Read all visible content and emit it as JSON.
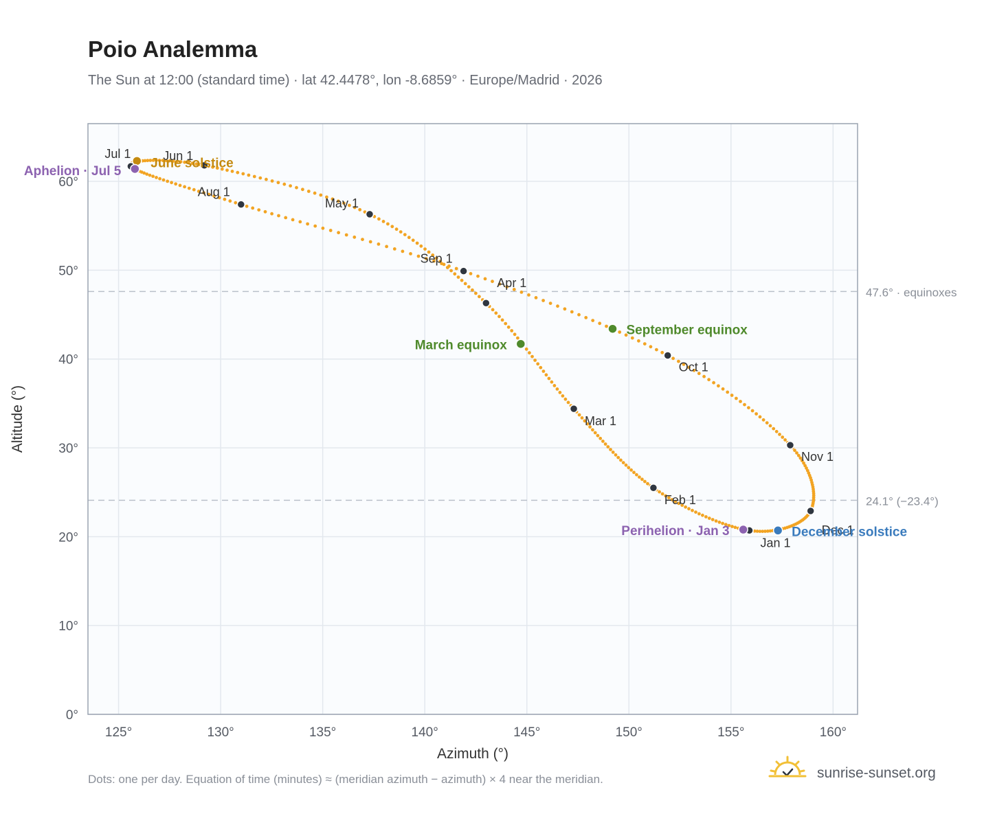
{
  "chart_data": {
    "type": "scatter",
    "title": "Poio Analemma",
    "subtitle": "The Sun at 12:00 (standard time) · lat 42.4478°, lon -8.6859° · Europe/Madrid · 2026",
    "xlabel": "Azimuth (°)",
    "ylabel": "Altitude (°)",
    "xlim": [
      123.5,
      161.2
    ],
    "ylim": [
      0,
      66.5
    ],
    "xticks": [
      125,
      130,
      135,
      140,
      145,
      150,
      155,
      160
    ],
    "yticks": [
      0,
      10,
      20,
      30,
      40,
      50,
      60
    ],
    "tick_suffix": "°",
    "grid": true,
    "series_color": "#f2a423",
    "month_markers": [
      {
        "label": "Jan 1",
        "az": 155.9,
        "alt": 20.7
      },
      {
        "label": "Feb 1",
        "az": 151.2,
        "alt": 25.5
      },
      {
        "label": "Mar 1",
        "az": 147.3,
        "alt": 34.4
      },
      {
        "label": "Apr 1",
        "az": 143.0,
        "alt": 46.3
      },
      {
        "label": "May 1",
        "az": 137.3,
        "alt": 56.3
      },
      {
        "label": "Jun 1",
        "az": 129.2,
        "alt": 61.8
      },
      {
        "label": "Jul 1",
        "az": 125.6,
        "alt": 61.7
      },
      {
        "label": "Aug 1",
        "az": 131.0,
        "alt": 57.4
      },
      {
        "label": "Sep 1",
        "az": 141.9,
        "alt": 49.9
      },
      {
        "label": "Oct 1",
        "az": 151.9,
        "alt": 40.4
      },
      {
        "label": "Nov 1",
        "az": 157.9,
        "alt": 30.3
      },
      {
        "label": "Dec 1",
        "az": 158.9,
        "alt": 22.9
      }
    ],
    "events": [
      {
        "label": "June solstice",
        "az": 125.9,
        "alt": 62.3,
        "color": "#c48a10"
      },
      {
        "label": "Aphelion · Jul 5",
        "az": 125.8,
        "alt": 61.4,
        "color": "#8c62b0"
      },
      {
        "label": "March equinox",
        "az": 144.7,
        "alt": 41.7,
        "color": "#4f8a2c"
      },
      {
        "label": "September equinox",
        "az": 149.2,
        "alt": 43.4,
        "color": "#4f8a2c"
      },
      {
        "label": "Perihelion · Jan 3",
        "az": 155.6,
        "alt": 20.8,
        "color": "#8c62b0"
      },
      {
        "label": "December solstice",
        "az": 157.3,
        "alt": 20.7,
        "color": "#3a7bbd"
      }
    ],
    "reference_lines": [
      {
        "alt": 47.6,
        "label": "47.6° · equinoxes"
      },
      {
        "alt": 24.1,
        "label": "24.1° (−23.4°)"
      }
    ]
  },
  "footnote": "Dots: one per day. Equation of time (minutes) ≈ (meridian azimuth − azimuth) × 4 near the meridian.",
  "brand": {
    "name": "sunrise-sunset.org",
    "icon": "sun-logo-icon",
    "color": "#f2c037"
  }
}
